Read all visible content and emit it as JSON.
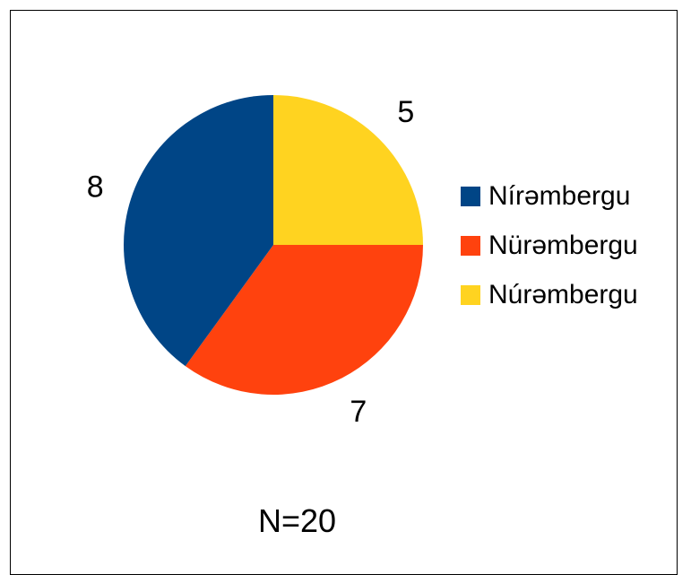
{
  "chart_data": {
    "type": "pie",
    "categories": [
      "Nírəmbergu",
      "Nürəmbergu",
      "Núrəmbergu"
    ],
    "values": [
      8,
      7,
      5
    ],
    "colors": [
      "#004586",
      "#ff420e",
      "#ffd320"
    ],
    "data_labels": [
      "8",
      "7",
      "5"
    ],
    "legend_position": "right",
    "note": "N=20"
  }
}
